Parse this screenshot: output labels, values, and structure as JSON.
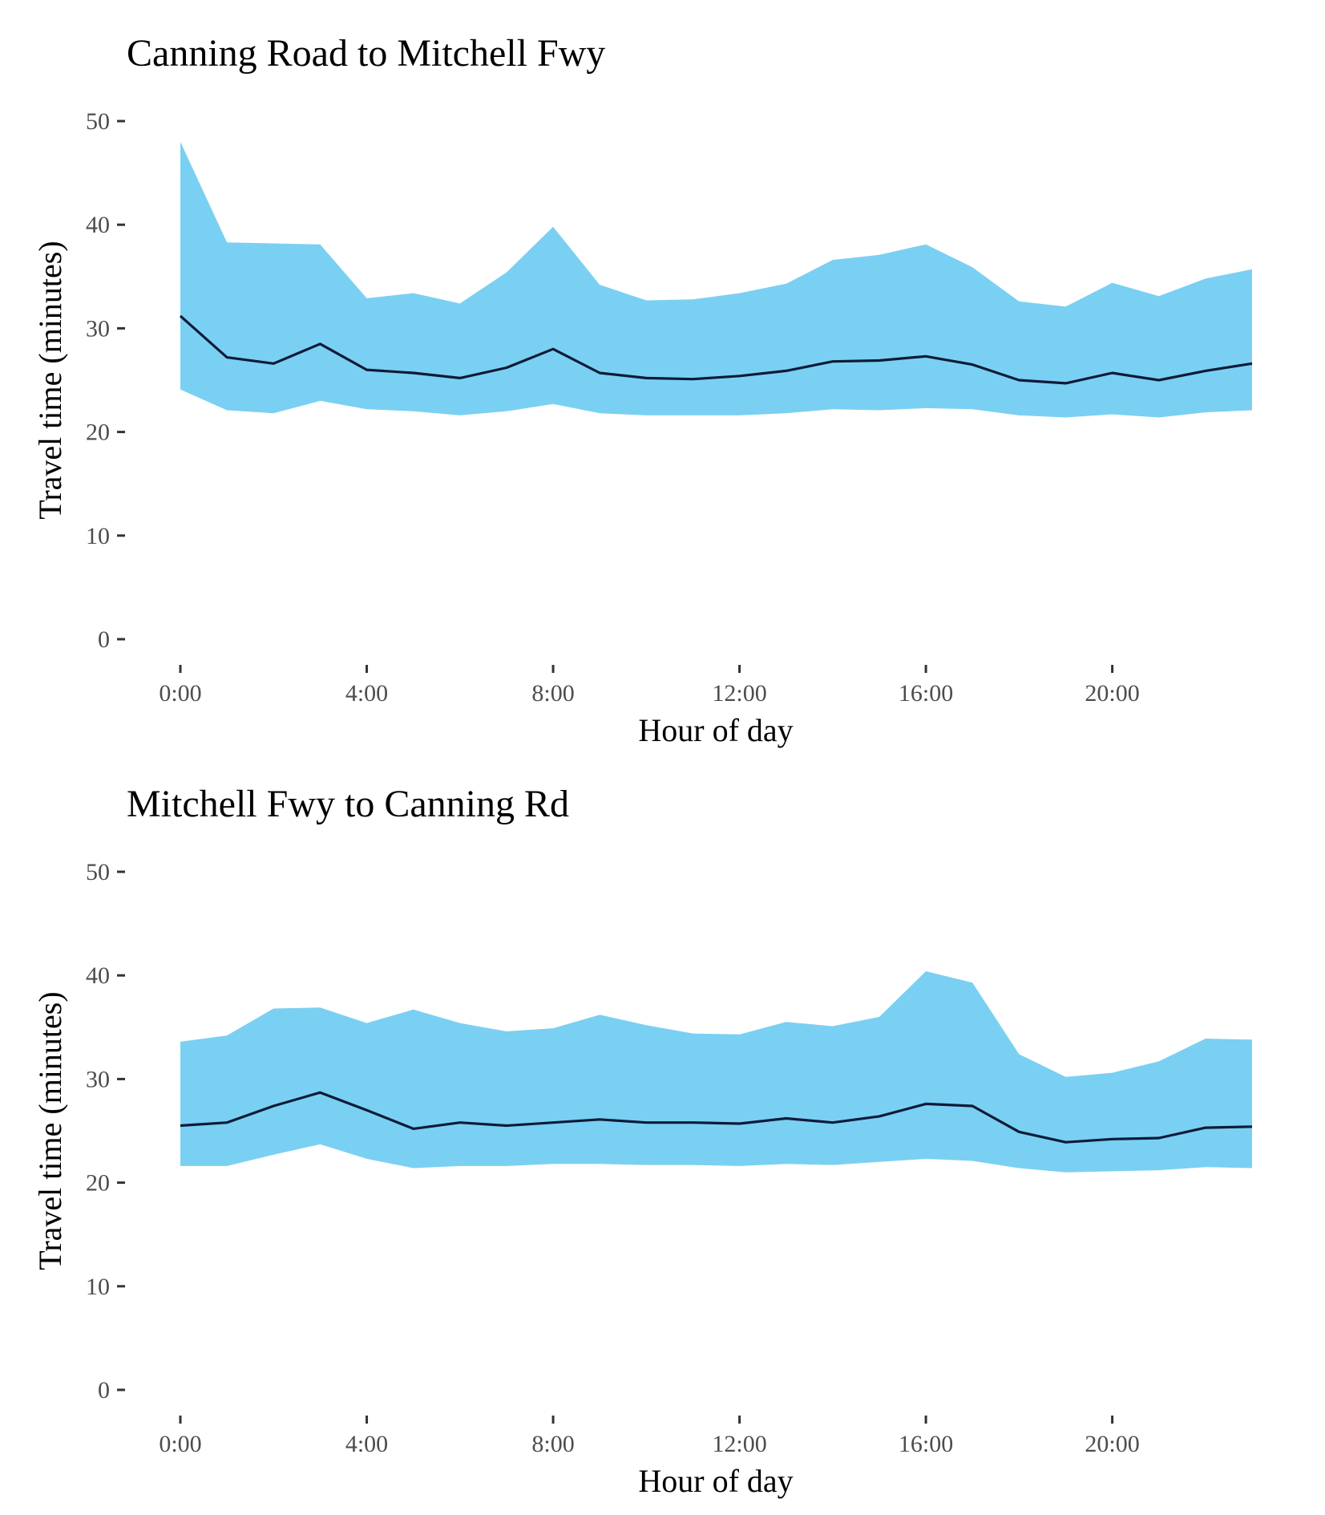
{
  "chart_data": [
    {
      "type": "area",
      "title": "Canning Road to Mitchell Fwy",
      "xlabel": "Hour of day",
      "ylabel": "Travel time (minutes)",
      "x": [
        0,
        1,
        2,
        3,
        4,
        5,
        6,
        7,
        8,
        9,
        10,
        11,
        12,
        13,
        14,
        15,
        16,
        17,
        18,
        19,
        20,
        21,
        22,
        23
      ],
      "xticks": [
        0,
        4,
        8,
        12,
        16,
        20
      ],
      "xtick_labels": [
        "0:00",
        "4:00",
        "8:00",
        "12:00",
        "16:00",
        "20:00"
      ],
      "yticks": [
        0,
        10,
        20,
        30,
        40,
        50
      ],
      "ylim": [
        0,
        50
      ],
      "grid": false,
      "colors": {
        "band": "#7ad0f2",
        "line": "#0d1b38"
      },
      "series": [
        {
          "role": "upper",
          "values": [
            48.0,
            38.3,
            38.2,
            38.1,
            32.9,
            33.4,
            32.4,
            35.4,
            39.8,
            34.2,
            32.7,
            32.8,
            33.4,
            34.3,
            36.6,
            37.1,
            38.1,
            35.9,
            32.6,
            32.1,
            34.4,
            33.1,
            34.8,
            35.7
          ]
        },
        {
          "role": "median",
          "values": [
            31.2,
            27.2,
            26.6,
            28.5,
            26.0,
            25.7,
            25.2,
            26.2,
            28.0,
            25.7,
            25.2,
            25.1,
            25.4,
            25.9,
            26.8,
            26.9,
            27.3,
            26.5,
            25.0,
            24.7,
            25.7,
            25.0,
            25.9,
            26.6
          ]
        },
        {
          "role": "lower",
          "values": [
            24.1,
            22.1,
            21.8,
            23.0,
            22.2,
            22.0,
            21.6,
            22.0,
            22.7,
            21.8,
            21.6,
            21.6,
            21.6,
            21.8,
            22.2,
            22.1,
            22.3,
            22.2,
            21.6,
            21.4,
            21.7,
            21.4,
            21.9,
            22.1
          ]
        }
      ]
    },
    {
      "type": "area",
      "title": "Mitchell Fwy to Canning Rd",
      "xlabel": "Hour of day",
      "ylabel": "Travel time (minutes)",
      "x": [
        0,
        1,
        2,
        3,
        4,
        5,
        6,
        7,
        8,
        9,
        10,
        11,
        12,
        13,
        14,
        15,
        16,
        17,
        18,
        19,
        20,
        21,
        22,
        23
      ],
      "xticks": [
        0,
        4,
        8,
        12,
        16,
        20
      ],
      "xtick_labels": [
        "0:00",
        "4:00",
        "8:00",
        "12:00",
        "16:00",
        "20:00"
      ],
      "yticks": [
        0,
        10,
        20,
        30,
        40,
        50
      ],
      "ylim": [
        0,
        50
      ],
      "grid": false,
      "colors": {
        "band": "#7ad0f2",
        "line": "#0d1b38"
      },
      "series": [
        {
          "role": "upper",
          "values": [
            33.6,
            34.2,
            36.8,
            36.9,
            35.4,
            36.7,
            35.4,
            34.6,
            34.9,
            36.2,
            35.2,
            34.4,
            34.3,
            35.5,
            35.1,
            36.0,
            40.4,
            39.3,
            32.4,
            30.2,
            30.6,
            31.7,
            33.9,
            33.8
          ]
        },
        {
          "role": "median",
          "values": [
            25.5,
            25.8,
            27.4,
            28.7,
            27.0,
            25.2,
            25.8,
            25.5,
            25.8,
            26.1,
            25.8,
            25.8,
            25.7,
            26.2,
            25.8,
            26.4,
            27.6,
            27.4,
            24.9,
            23.9,
            24.2,
            24.3,
            25.3,
            25.4
          ]
        },
        {
          "role": "lower",
          "values": [
            21.6,
            21.6,
            22.7,
            23.7,
            22.3,
            21.4,
            21.6,
            21.6,
            21.8,
            21.8,
            21.7,
            21.7,
            21.6,
            21.8,
            21.7,
            22.0,
            22.3,
            22.1,
            21.4,
            21.0,
            21.1,
            21.2,
            21.5,
            21.4
          ]
        }
      ]
    }
  ]
}
